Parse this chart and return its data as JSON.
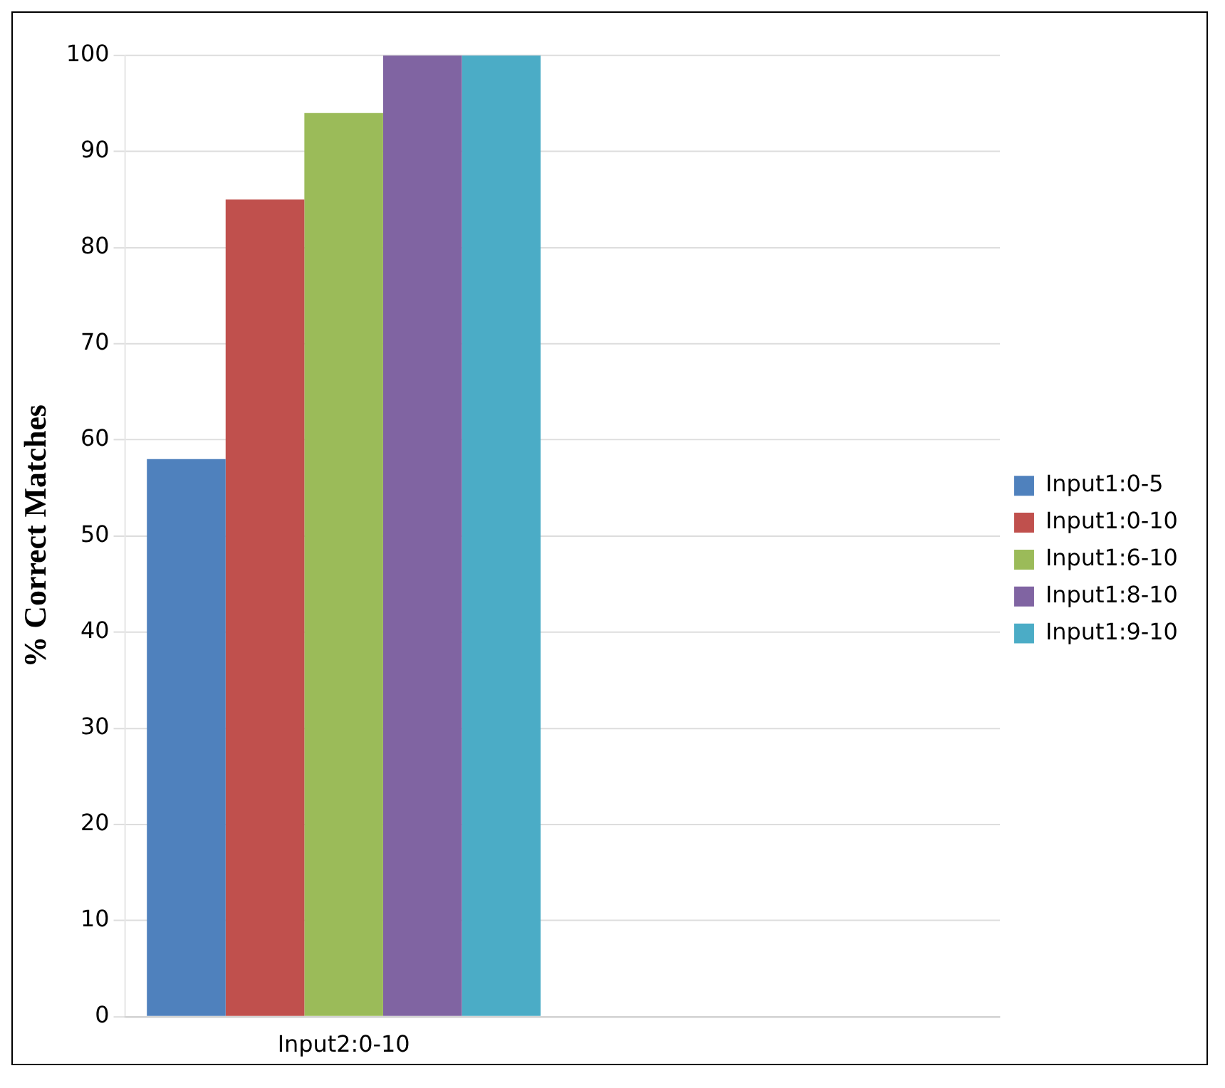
{
  "chart_data": {
    "type": "bar",
    "ylabel": "% Correct Matches",
    "categories": [
      "Input2:0-10",
      null
    ],
    "series": [
      {
        "name": "Input1:0-5",
        "color": "#4f81bd",
        "values": [
          58,
          null
        ]
      },
      {
        "name": "Input1:0-10",
        "color": "#c0504d",
        "values": [
          85,
          null
        ]
      },
      {
        "name": "Input1:6-10",
        "color": "#9bbb59",
        "values": [
          94,
          null
        ]
      },
      {
        "name": "Input1:8-10",
        "color": "#8064a2",
        "values": [
          100,
          null
        ]
      },
      {
        "name": "Input1:9-10",
        "color": "#4bacc6",
        "values": [
          100,
          null
        ]
      }
    ],
    "ylim": [
      0,
      100
    ],
    "yticks": [
      0,
      10,
      20,
      30,
      40,
      50,
      60,
      70,
      80,
      90,
      100
    ],
    "grid": "y",
    "legend": "right"
  }
}
